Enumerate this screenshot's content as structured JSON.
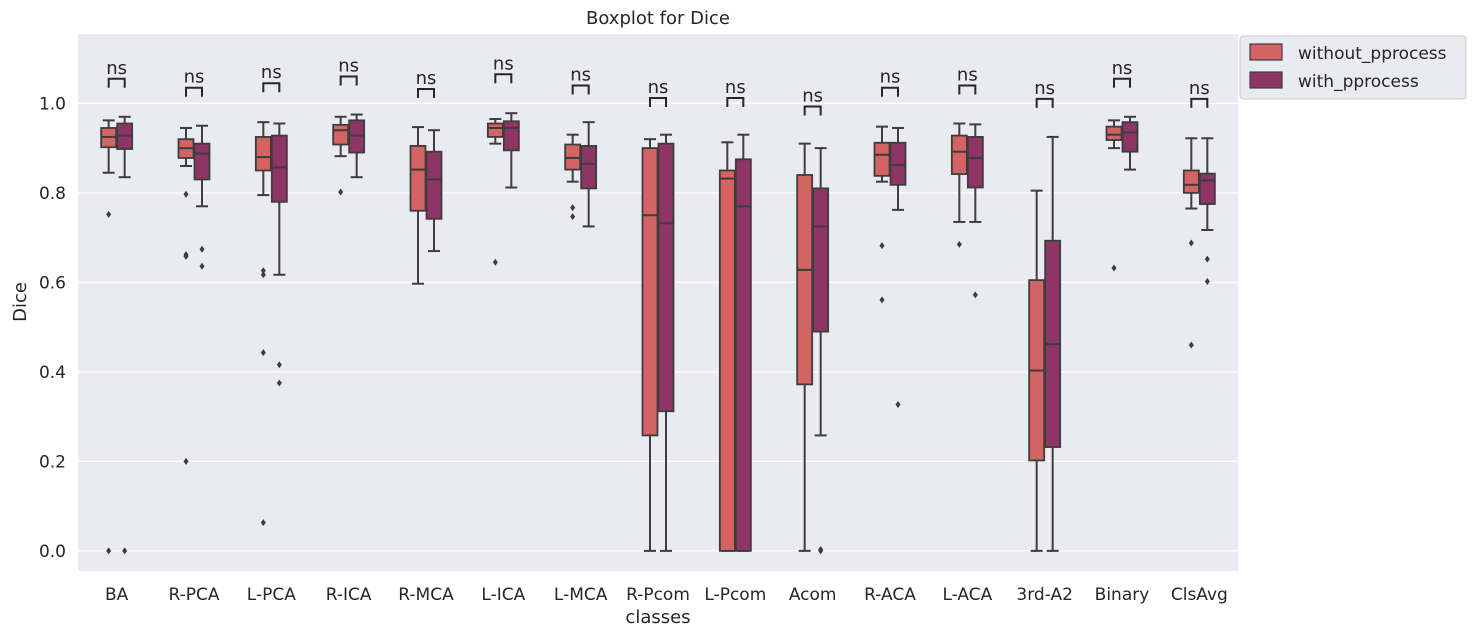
{
  "chart_data": {
    "type": "boxplot",
    "title": "Boxplot for Dice",
    "xlabel": "classes",
    "ylabel": "Dice",
    "ylim": [
      -0.045,
      1.155
    ],
    "yticks": [
      0.0,
      0.2,
      0.4,
      0.6,
      0.8,
      1.0
    ],
    "ytick_labels": [
      "0.0",
      "0.2",
      "0.4",
      "0.6",
      "0.8",
      "1.0"
    ],
    "grid": true,
    "legend_position": "upper-right",
    "categories": [
      "BA",
      "R-PCA",
      "L-PCA",
      "R-ICA",
      "R-MCA",
      "L-ICA",
      "L-MCA",
      "R-Pcom",
      "L-Pcom",
      "Acom",
      "R-ACA",
      "L-ACA",
      "3rd-A2",
      "Binary",
      "ClsAvg"
    ],
    "series": [
      {
        "name": "without_pprocess",
        "color": "#d46464",
        "boxes": [
          {
            "whislo": 0.845,
            "q1": 0.902,
            "med": 0.925,
            "q3": 0.945,
            "whishi": 0.962,
            "fliers": [
              0.752,
              0.0
            ]
          },
          {
            "whislo": 0.86,
            "q1": 0.878,
            "med": 0.9,
            "q3": 0.92,
            "whishi": 0.945,
            "fliers": [
              0.797,
              0.662,
              0.658,
              0.2
            ]
          },
          {
            "whislo": 0.795,
            "q1": 0.85,
            "med": 0.88,
            "q3": 0.925,
            "whishi": 0.958,
            "fliers": [
              0.626,
              0.617,
              0.443,
              0.063
            ]
          },
          {
            "whislo": 0.882,
            "q1": 0.908,
            "med": 0.94,
            "q3": 0.952,
            "whishi": 0.97,
            "fliers": [
              0.802
            ]
          },
          {
            "whislo": 0.597,
            "q1": 0.76,
            "med": 0.852,
            "q3": 0.905,
            "whishi": 0.947,
            "fliers": []
          },
          {
            "whislo": 0.91,
            "q1": 0.925,
            "med": 0.945,
            "q3": 0.955,
            "whishi": 0.965,
            "fliers": [
              0.645
            ]
          },
          {
            "whislo": 0.825,
            "q1": 0.852,
            "med": 0.878,
            "q3": 0.908,
            "whishi": 0.93,
            "fliers": [
              0.767,
              0.747
            ]
          },
          {
            "whislo": 0.0,
            "q1": 0.258,
            "med": 0.75,
            "q3": 0.9,
            "whishi": 0.92,
            "fliers": []
          },
          {
            "whislo": 0.0,
            "q1": 0.0,
            "med": 0.832,
            "q3": 0.85,
            "whishi": 0.913,
            "fliers": []
          },
          {
            "whislo": 0.0,
            "q1": 0.372,
            "med": 0.628,
            "q3": 0.84,
            "whishi": 0.91,
            "fliers": []
          },
          {
            "whislo": 0.825,
            "q1": 0.838,
            "med": 0.885,
            "q3": 0.912,
            "whishi": 0.948,
            "fliers": [
              0.682,
              0.561
            ]
          },
          {
            "whislo": 0.735,
            "q1": 0.842,
            "med": 0.892,
            "q3": 0.928,
            "whishi": 0.955,
            "fliers": [
              0.685
            ]
          },
          {
            "whislo": 0.0,
            "q1": 0.202,
            "med": 0.403,
            "q3": 0.605,
            "whishi": 0.805,
            "fliers": []
          },
          {
            "whislo": 0.9,
            "q1": 0.918,
            "med": 0.93,
            "q3": 0.948,
            "whishi": 0.962,
            "fliers": [
              0.632
            ]
          },
          {
            "whislo": 0.765,
            "q1": 0.8,
            "med": 0.818,
            "q3": 0.85,
            "whishi": 0.922,
            "fliers": [
              0.688,
              0.46
            ]
          }
        ]
      },
      {
        "name": "with_pprocess",
        "color": "#8e3565",
        "boxes": [
          {
            "whislo": 0.835,
            "q1": 0.898,
            "med": 0.928,
            "q3": 0.955,
            "whishi": 0.97,
            "fliers": [
              0.0
            ]
          },
          {
            "whislo": 0.77,
            "q1": 0.83,
            "med": 0.888,
            "q3": 0.91,
            "whishi": 0.95,
            "fliers": [
              0.674,
              0.636
            ]
          },
          {
            "whislo": 0.617,
            "q1": 0.78,
            "med": 0.857,
            "q3": 0.928,
            "whishi": 0.955,
            "fliers": [
              0.416,
              0.375
            ]
          },
          {
            "whislo": 0.835,
            "q1": 0.89,
            "med": 0.928,
            "q3": 0.962,
            "whishi": 0.975,
            "fliers": []
          },
          {
            "whislo": 0.67,
            "q1": 0.742,
            "med": 0.83,
            "q3": 0.892,
            "whishi": 0.94,
            "fliers": []
          },
          {
            "whislo": 0.812,
            "q1": 0.895,
            "med": 0.945,
            "q3": 0.96,
            "whishi": 0.978,
            "fliers": []
          },
          {
            "whislo": 0.725,
            "q1": 0.81,
            "med": 0.865,
            "q3": 0.905,
            "whishi": 0.958,
            "fliers": []
          },
          {
            "whislo": 0.0,
            "q1": 0.312,
            "med": 0.732,
            "q3": 0.91,
            "whishi": 0.93,
            "fliers": []
          },
          {
            "whislo": 0.0,
            "q1": 0.0,
            "med": 0.77,
            "q3": 0.875,
            "whishi": 0.93,
            "fliers": []
          },
          {
            "whislo": 0.258,
            "q1": 0.49,
            "med": 0.725,
            "q3": 0.81,
            "whishi": 0.9,
            "fliers": [
              0.0,
              0.003
            ]
          },
          {
            "whislo": 0.762,
            "q1": 0.818,
            "med": 0.862,
            "q3": 0.912,
            "whishi": 0.945,
            "fliers": [
              0.327
            ]
          },
          {
            "whislo": 0.735,
            "q1": 0.812,
            "med": 0.878,
            "q3": 0.925,
            "whishi": 0.953,
            "fliers": [
              0.572
            ]
          },
          {
            "whislo": 0.0,
            "q1": 0.232,
            "med": 0.462,
            "q3": 0.693,
            "whishi": 0.925,
            "fliers": []
          },
          {
            "whislo": 0.852,
            "q1": 0.892,
            "med": 0.935,
            "q3": 0.958,
            "whishi": 0.97,
            "fliers": []
          },
          {
            "whislo": 0.717,
            "q1": 0.775,
            "med": 0.828,
            "q3": 0.843,
            "whishi": 0.922,
            "fliers": [
              0.652,
              0.602
            ]
          }
        ]
      }
    ],
    "annotations": {
      "label": "ns",
      "bracket_y": [
        1.055,
        1.035,
        1.045,
        1.06,
        1.032,
        1.065,
        1.04,
        1.012,
        1.012,
        0.993,
        1.035,
        1.04,
        1.01,
        1.055,
        1.01
      ]
    },
    "colors": {
      "background": "#eaeaf2",
      "grid": "#ffffff",
      "line": "#3d3d3d"
    }
  }
}
